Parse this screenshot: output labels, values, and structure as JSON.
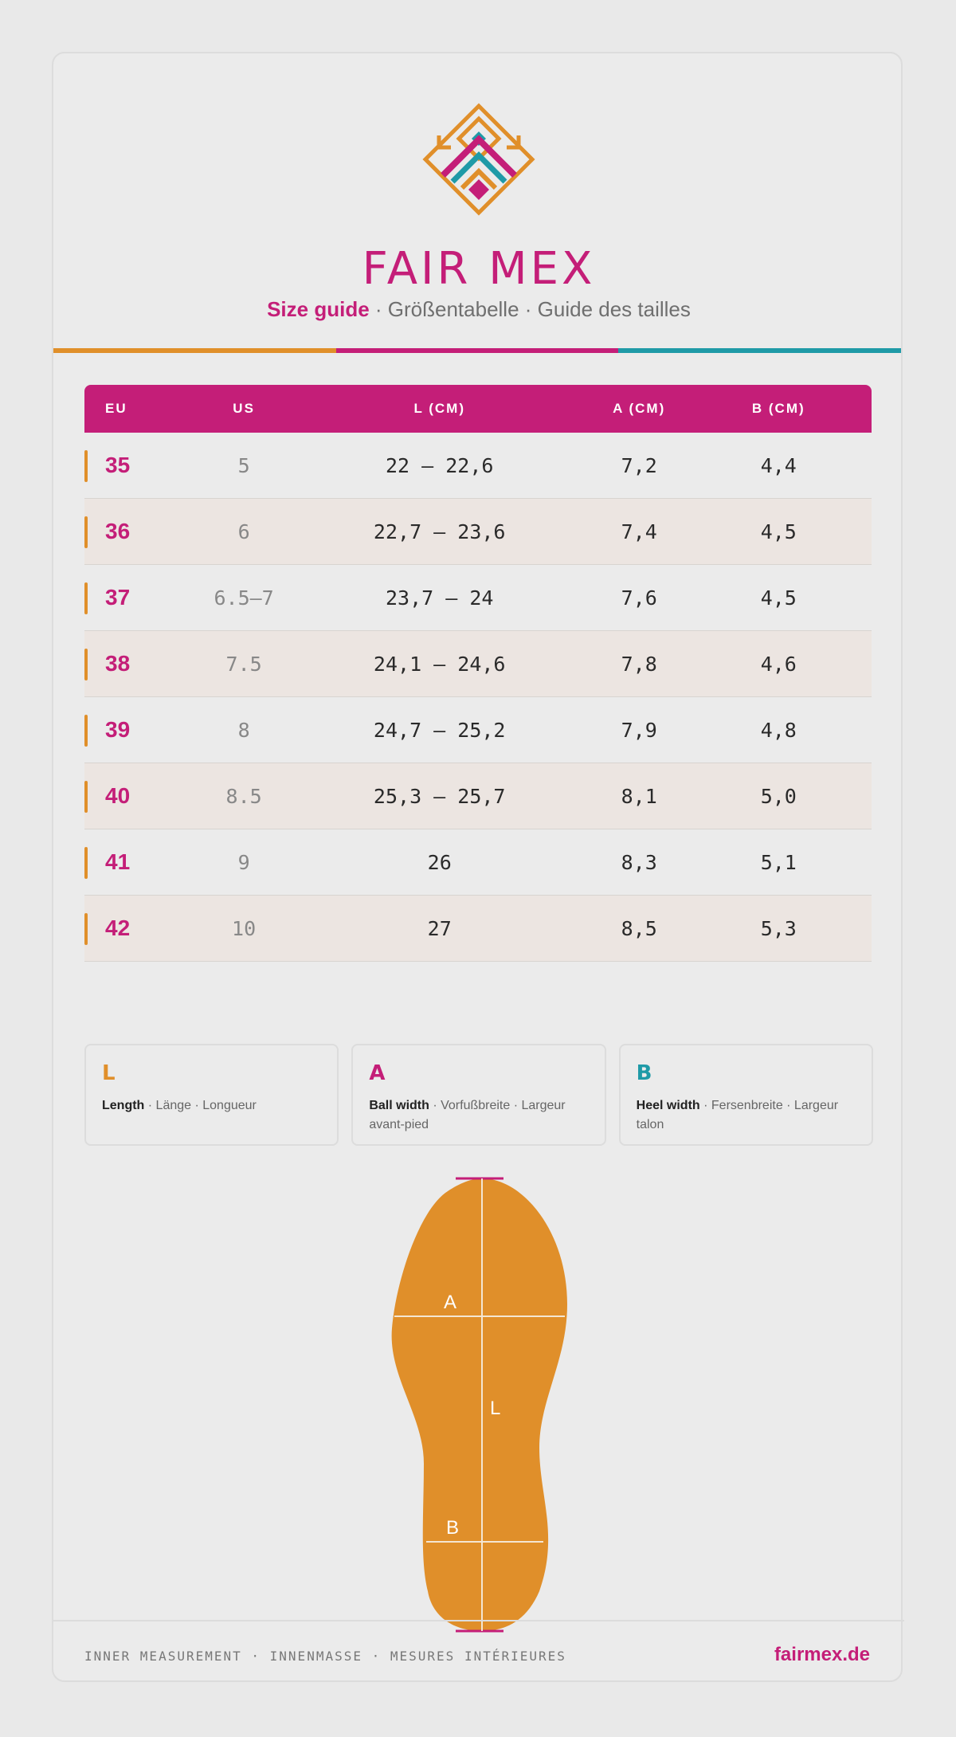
{
  "brand": {
    "name": "FAIR MEX"
  },
  "subtitle": {
    "en": "Size guide",
    "sep1": " · ",
    "de": "Größentabelle",
    "sep2": " · ",
    "fr": "Guide des tailles"
  },
  "colors": {
    "magenta": "#c41e78",
    "orange": "#e08f2a",
    "teal": "#1f9aa7"
  },
  "table": {
    "headers": [
      "EU",
      "US",
      "L (CM)",
      "A (CM)",
      "B (CM)"
    ],
    "rows": [
      {
        "eu": "35",
        "us": "5",
        "l": "22 – 22,6",
        "a": "7,2",
        "b": "4,4"
      },
      {
        "eu": "36",
        "us": "6",
        "l": "22,7 – 23,6",
        "a": "7,4",
        "b": "4,5"
      },
      {
        "eu": "37",
        "us": "6.5–7",
        "l": "23,7 – 24",
        "a": "7,6",
        "b": "4,5"
      },
      {
        "eu": "38",
        "us": "7.5",
        "l": "24,1 – 24,6",
        "a": "7,8",
        "b": "4,6"
      },
      {
        "eu": "39",
        "us": "8",
        "l": "24,7 – 25,2",
        "a": "7,9",
        "b": "4,8"
      },
      {
        "eu": "40",
        "us": "8.5",
        "l": "25,3 – 25,7",
        "a": "8,1",
        "b": "5,0"
      },
      {
        "eu": "41",
        "us": "9",
        "l": "26",
        "a": "8,3",
        "b": "5,1"
      },
      {
        "eu": "42",
        "us": "10",
        "l": "27",
        "a": "8,5",
        "b": "5,3"
      }
    ]
  },
  "legend": [
    {
      "letter": "L",
      "title": "Length",
      "rest": " · Länge · Longueur",
      "color": "#e08f2a"
    },
    {
      "letter": "A",
      "title": "Ball width",
      "rest": " · Vorfußbreite · Largeur avant-pied",
      "color": "#c41e78"
    },
    {
      "letter": "B",
      "title": "Heel width",
      "rest": " · Fersenbreite · Largeur talon",
      "color": "#1f9aa7"
    }
  ],
  "diagram": {
    "label_a": "A",
    "label_l": "L",
    "label_b": "B"
  },
  "footer": {
    "note": "INNER MEASUREMENT · INNENMASSE · MESURES INTÉRIEURES",
    "url": "fairmex.de"
  }
}
